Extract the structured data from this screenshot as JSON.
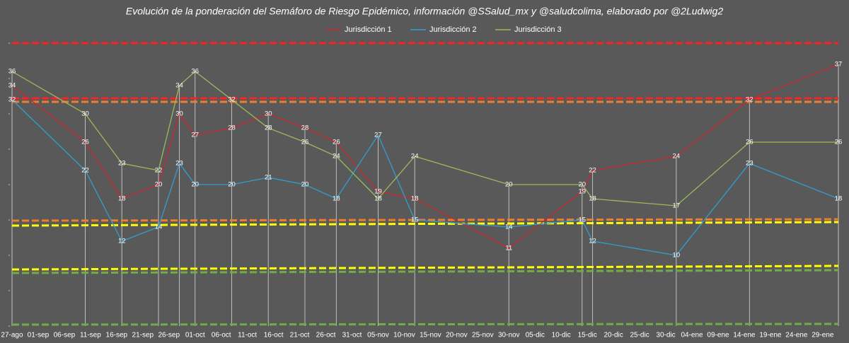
{
  "chart_data": {
    "type": "line",
    "title": "Evolución de la ponderación del Semáforo de Riesgo Epidémico, información @SSalud_mx y @saludcolima, elaborado por @2Ludwig2",
    "x": [
      "27-ago",
      "10-sep",
      "17-sep",
      "24-sep",
      "28-sep",
      "01-oct",
      "08-oct",
      "15-oct",
      "22-oct",
      "28-oct",
      "05-nov",
      "12-nov",
      "30-nov",
      "14-dic",
      "16-dic",
      "01-ene",
      "15-ene",
      "01-feb"
    ],
    "series": [
      {
        "name": "Jurisdicción 1",
        "color": "#c9272d",
        "values": [
          34,
          26,
          18,
          20,
          30,
          27,
          28,
          30,
          28,
          26,
          19,
          18,
          11,
          19,
          22,
          24,
          32,
          37
        ]
      },
      {
        "name": "Jurisdicción 2",
        "color": "#2f9fd0",
        "values": [
          32,
          22,
          12,
          14,
          23,
          20,
          20,
          21,
          20,
          18,
          27,
          15,
          14,
          15,
          12,
          10,
          23,
          18
        ]
      },
      {
        "name": "Jurisdicción 3",
        "color": "#9bbb59",
        "values": [
          36,
          30,
          23,
          22,
          34,
          36,
          32,
          28,
          26,
          24,
          18,
          24,
          20,
          20,
          18,
          17,
          26,
          26
        ]
      }
    ],
    "xlim": [
      "27-ago",
      "01-feb"
    ],
    "xticks": [
      "27-ago",
      "01-sep",
      "06-sep",
      "11-sep",
      "16-sep",
      "21-sep",
      "26-sep",
      "01-oct",
      "06-oct",
      "11-oct",
      "16-oct",
      "21-oct",
      "26-oct",
      "31-oct",
      "05-nov",
      "10-nov",
      "15-nov",
      "20-nov",
      "25-nov",
      "30-nov",
      "05-dic",
      "10-dic",
      "15-dic",
      "20-dic",
      "25-dic",
      "30-dic",
      "04-ene",
      "09-ene",
      "14-ene",
      "19-ene",
      "24-ene",
      "29-ene"
    ],
    "ylim": [
      0,
      40
    ],
    "yticks": [
      0,
      5,
      10,
      15,
      20,
      25,
      30,
      35,
      40
    ],
    "reference_lines": [
      {
        "color": "#ff2020",
        "values": [
          40,
          40
        ]
      },
      {
        "color": "#ff2020",
        "values": [
          32.2,
          32.2
        ]
      },
      {
        "color": "#ed7d31",
        "values": [
          31.7,
          31.7
        ]
      },
      {
        "color": "#ed7d31",
        "values": [
          14.9,
          15.1
        ]
      },
      {
        "color": "#ffff00",
        "values": [
          14.2,
          14.7
        ]
      },
      {
        "color": "#ffff00",
        "values": [
          8.0,
          8.5
        ]
      },
      {
        "color": "#70ad47",
        "values": [
          7.5,
          7.9
        ]
      },
      {
        "color": "#70ad47",
        "values": [
          0.2,
          0.3
        ]
      }
    ],
    "drop_lines": true,
    "legend": "top"
  }
}
